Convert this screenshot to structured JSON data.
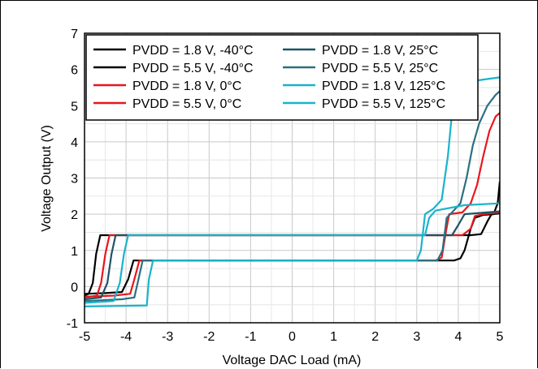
{
  "chart_data": {
    "type": "line",
    "xlabel": "Voltage DAC Load (mA)",
    "ylabel": "Voltage Output (V)",
    "xlim": [
      -5,
      5
    ],
    "ylim": [
      -1,
      7
    ],
    "xticks": [
      -5,
      -4,
      -3,
      -2,
      -1,
      0,
      1,
      2,
      3,
      4,
      5
    ],
    "yticks": [
      -1,
      0,
      1,
      2,
      3,
      4,
      5,
      6,
      7
    ],
    "grid": true,
    "legend_placement": "top",
    "series": [
      {
        "name": "PVDD = 1.8 V, -40°C",
        "color": "#000000",
        "points": [
          [
            -5,
            -0.25
          ],
          [
            -4.9,
            -0.2
          ],
          [
            -4.8,
            0.1
          ],
          [
            -4.72,
            0.9
          ],
          [
            -4.62,
            1.42
          ],
          [
            4.3,
            1.42
          ],
          [
            4.55,
            1.45
          ],
          [
            4.7,
            1.8
          ],
          [
            4.8,
            2.0
          ],
          [
            5,
            2.02
          ]
        ]
      },
      {
        "name": "PVDD = 5.5 V, -40°C",
        "color": "#000000",
        "points": [
          [
            -5,
            -0.2
          ],
          [
            -4.5,
            -0.18
          ],
          [
            -4.1,
            -0.15
          ],
          [
            -3.95,
            0.2
          ],
          [
            -3.82,
            0.72
          ],
          [
            3.9,
            0.72
          ],
          [
            4.05,
            0.78
          ],
          [
            4.15,
            1.0
          ],
          [
            4.3,
            1.6
          ],
          [
            4.4,
            1.9
          ],
          [
            4.6,
            1.98
          ],
          [
            4.85,
            2.0
          ],
          [
            4.95,
            2.3
          ],
          [
            5,
            2.9
          ]
        ]
      },
      {
        "name": "PVDD = 1.8 V, 0°C",
        "color": "#e8161d",
        "points": [
          [
            -5,
            -0.3
          ],
          [
            -4.7,
            -0.25
          ],
          [
            -4.6,
            0.1
          ],
          [
            -4.5,
            0.9
          ],
          [
            -4.4,
            1.42
          ],
          [
            4.1,
            1.42
          ],
          [
            4.3,
            1.6
          ],
          [
            4.4,
            1.95
          ],
          [
            4.6,
            2.0
          ],
          [
            5,
            2.05
          ]
        ]
      },
      {
        "name": "PVDD = 5.5 V, 0°C",
        "color": "#e8161d",
        "points": [
          [
            -5,
            -0.28
          ],
          [
            -4.3,
            -0.25
          ],
          [
            -3.9,
            -0.2
          ],
          [
            -3.8,
            0.2
          ],
          [
            -3.68,
            0.72
          ],
          [
            3.45,
            0.72
          ],
          [
            3.6,
            0.8
          ],
          [
            3.7,
            1.5
          ],
          [
            3.78,
            2.0
          ],
          [
            4.1,
            2.05
          ],
          [
            4.3,
            2.3
          ],
          [
            4.45,
            2.8
          ],
          [
            4.6,
            3.6
          ],
          [
            4.75,
            4.3
          ],
          [
            4.9,
            4.7
          ],
          [
            5,
            4.8
          ]
        ]
      },
      {
        "name": "PVDD = 1.8 V, 25°C",
        "color": "#1c5466",
        "points": [
          [
            -5,
            -0.35
          ],
          [
            -4.6,
            -0.3
          ],
          [
            -4.45,
            0.1
          ],
          [
            -4.35,
            0.9
          ],
          [
            -4.25,
            1.42
          ],
          [
            3.85,
            1.42
          ],
          [
            4.0,
            1.7
          ],
          [
            4.15,
            2.0
          ],
          [
            5,
            2.08
          ]
        ]
      },
      {
        "name": "PVDD = 5.5 V, 25°C",
        "color": "#2b7080",
        "points": [
          [
            -5,
            -0.4
          ],
          [
            -4.1,
            -0.35
          ],
          [
            -3.8,
            -0.3
          ],
          [
            -3.7,
            0.2
          ],
          [
            -3.6,
            0.72
          ],
          [
            3.5,
            0.72
          ],
          [
            3.62,
            1.0
          ],
          [
            3.72,
            1.9
          ],
          [
            3.85,
            2.05
          ],
          [
            4.05,
            2.3
          ],
          [
            4.2,
            3.0
          ],
          [
            4.35,
            3.9
          ],
          [
            4.5,
            4.5
          ],
          [
            4.7,
            5.0
          ],
          [
            4.9,
            5.3
          ],
          [
            5,
            5.4
          ]
        ]
      },
      {
        "name": "PVDD = 1.8 V, 125°C",
        "color": "#19b3cc",
        "points": [
          [
            -5,
            -0.45
          ],
          [
            -4.3,
            -0.4
          ],
          [
            -4.15,
            0.1
          ],
          [
            -4.05,
            0.9
          ],
          [
            -3.95,
            1.42
          ],
          [
            3.2,
            1.42
          ],
          [
            3.3,
            1.9
          ],
          [
            3.45,
            2.1
          ],
          [
            4.15,
            2.25
          ],
          [
            5,
            2.3
          ]
        ]
      },
      {
        "name": "PVDD = 5.5 V, 125°C",
        "color": "#19b3cc",
        "points": [
          [
            -5,
            -0.55
          ],
          [
            -3.5,
            -0.52
          ],
          [
            -3.45,
            0.2
          ],
          [
            -3.35,
            0.72
          ],
          [
            3.0,
            0.72
          ],
          [
            3.1,
            1.0
          ],
          [
            3.2,
            2.0
          ],
          [
            3.4,
            2.15
          ],
          [
            3.6,
            2.4
          ],
          [
            3.75,
            3.6
          ],
          [
            3.85,
            4.8
          ],
          [
            3.95,
            5.4
          ],
          [
            4.2,
            5.65
          ],
          [
            4.6,
            5.72
          ],
          [
            5,
            5.78
          ]
        ]
      }
    ]
  }
}
